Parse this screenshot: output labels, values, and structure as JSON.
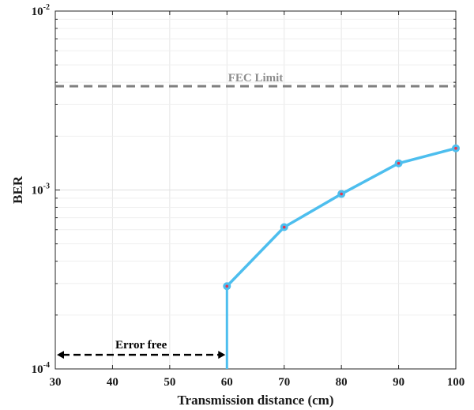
{
  "chart_data": {
    "type": "line",
    "xlabel": "Transmission distance (cm)",
    "ylabel": "BER",
    "xlim": [
      30,
      100
    ],
    "ylim": [
      0.0001,
      0.01
    ],
    "yscale": "log",
    "grid": true,
    "x_ticks": [
      "30",
      "40",
      "50",
      "60",
      "70",
      "80",
      "90",
      "100"
    ],
    "y_ticks": [
      {
        "base": "10",
        "exp": "-2",
        "value": 0.01
      },
      {
        "base": "10",
        "exp": "-3",
        "value": 0.001
      },
      {
        "base": "10",
        "exp": "-4",
        "value": 0.0001
      }
    ],
    "series": [
      {
        "x": [
          60,
          70,
          80,
          90,
          100
        ],
        "y": [
          0.00029,
          0.00062,
          0.00095,
          0.00141,
          0.00171
        ],
        "color": "#4dbeee",
        "marker_color": "#e8334a"
      }
    ],
    "annotations": {
      "fec_limit": {
        "label": "FEC Limit",
        "value": 0.0038,
        "color": "#808080"
      },
      "error_free": {
        "label": "Error free",
        "x_from": 30,
        "x_to": 60,
        "y": 0.00012
      }
    }
  }
}
